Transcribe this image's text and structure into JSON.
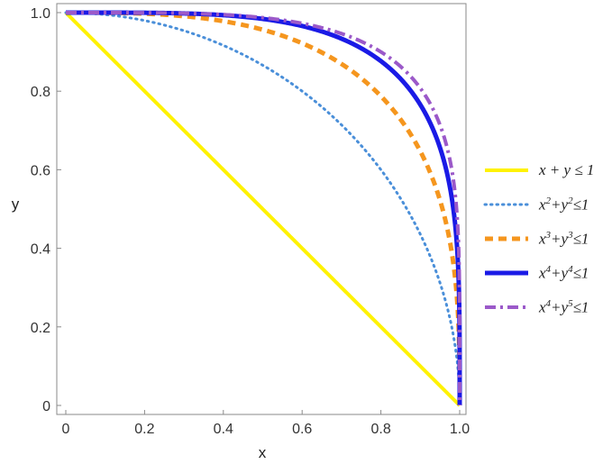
{
  "chart_data": {
    "type": "line",
    "title": "",
    "xlabel": "x",
    "ylabel": "y",
    "xlim": [
      0,
      1
    ],
    "ylim": [
      0,
      1
    ],
    "x_ticks": [
      "0",
      "0.2",
      "0.4",
      "0.6",
      "0.8",
      "1.0"
    ],
    "y_ticks": [
      "0",
      "0.2",
      "0.4",
      "0.6",
      "0.8",
      "1.0"
    ],
    "grid": false,
    "legend_position": "right",
    "series": [
      {
        "name": "x + y ≤ 1",
        "exponent_x": 1,
        "exponent_y": 1,
        "color": "#FFF200",
        "style": "solid"
      },
      {
        "name": "x2+y2≤1",
        "exponent_x": 2,
        "exponent_y": 2,
        "color": "#4A8FD9",
        "style": "dotted"
      },
      {
        "name": "x3+y3≤1",
        "exponent_x": 3,
        "exponent_y": 3,
        "color": "#F5961E",
        "style": "dashed"
      },
      {
        "name": "x4+y4≤1",
        "exponent_x": 4,
        "exponent_y": 4,
        "color": "#1A1AE6",
        "style": "solid"
      },
      {
        "name": "x4+y5≤1",
        "exponent_x": 4,
        "exponent_y": 5,
        "color": "#9B59C9",
        "style": "dashdot"
      }
    ]
  },
  "legend": {
    "items": [
      {
        "html": "x + y ≤ 1"
      },
      {
        "html": "x<sup>2</sup>+y<sup>2</sup>≤1"
      },
      {
        "html": "x<sup>3</sup>+y<sup>3</sup>≤1"
      },
      {
        "html": "x<sup>4</sup>+y<sup>4</sup>≤1"
      },
      {
        "html": "x<sup>4</sup>+y<sup>5</sup>≤1"
      }
    ]
  }
}
